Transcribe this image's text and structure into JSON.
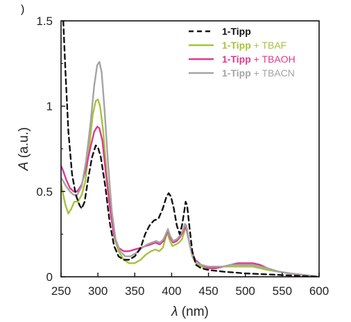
{
  "panel_mark": ")",
  "chart_data": {
    "type": "line",
    "xlabel_italic": "λ",
    "xlabel_unit": " (nm)",
    "ylabel_italic": "A",
    "ylabel_unit": " (a.u.)",
    "xlim": [
      250,
      600
    ],
    "ylim": [
      0,
      1.5
    ],
    "x_ticks": [
      250,
      300,
      350,
      400,
      450,
      500,
      550,
      600
    ],
    "y_ticks": [
      0,
      0.5,
      1,
      1.5
    ],
    "y_tick_labels": [
      "0",
      "0.5",
      "1",
      "1.5"
    ],
    "grid": false,
    "legend_position": "top-right",
    "series": [
      {
        "name_bold": "1-Tipp",
        "name_suffix": "",
        "color": "#111111",
        "dash": "7,5",
        "points": [
          [
            253,
            1.5
          ],
          [
            256,
            1.2
          ],
          [
            260,
            0.85
          ],
          [
            265,
            0.6
          ],
          [
            270,
            0.48
          ],
          [
            275,
            0.42
          ],
          [
            278,
            0.4
          ],
          [
            282,
            0.44
          ],
          [
            287,
            0.58
          ],
          [
            292,
            0.7
          ],
          [
            297,
            0.77
          ],
          [
            300,
            0.76
          ],
          [
            304,
            0.7
          ],
          [
            310,
            0.53
          ],
          [
            316,
            0.32
          ],
          [
            322,
            0.18
          ],
          [
            328,
            0.12
          ],
          [
            335,
            0.1
          ],
          [
            342,
            0.1
          ],
          [
            350,
            0.12
          ],
          [
            358,
            0.17
          ],
          [
            364,
            0.25
          ],
          [
            370,
            0.3
          ],
          [
            376,
            0.33
          ],
          [
            382,
            0.34
          ],
          [
            388,
            0.4
          ],
          [
            393,
            0.47
          ],
          [
            396,
            0.49
          ],
          [
            399,
            0.47
          ],
          [
            403,
            0.4
          ],
          [
            407,
            0.3
          ],
          [
            411,
            0.25
          ],
          [
            414,
            0.3
          ],
          [
            417,
            0.38
          ],
          [
            419,
            0.44
          ],
          [
            421,
            0.42
          ],
          [
            424,
            0.3
          ],
          [
            428,
            0.15
          ],
          [
            433,
            0.07
          ],
          [
            440,
            0.05
          ],
          [
            450,
            0.04
          ],
          [
            470,
            0.03
          ],
          [
            500,
            0.02
          ],
          [
            550,
            0.01
          ],
          [
            600,
            0.0
          ]
        ]
      },
      {
        "name_bold": "1-Tipp",
        "name_suffix": " + TBAF",
        "color": "#a5c33b",
        "dash": "",
        "points": [
          [
            250,
            0.55
          ],
          [
            253,
            0.48
          ],
          [
            256,
            0.42
          ],
          [
            260,
            0.37
          ],
          [
            264,
            0.4
          ],
          [
            268,
            0.44
          ],
          [
            273,
            0.44
          ],
          [
            278,
            0.48
          ],
          [
            283,
            0.56
          ],
          [
            288,
            0.75
          ],
          [
            293,
            0.95
          ],
          [
            297,
            1.03
          ],
          [
            300,
            1.04
          ],
          [
            303,
            1.0
          ],
          [
            307,
            0.86
          ],
          [
            312,
            0.6
          ],
          [
            318,
            0.35
          ],
          [
            323,
            0.22
          ],
          [
            328,
            0.15
          ],
          [
            335,
            0.1
          ],
          [
            342,
            0.08
          ],
          [
            350,
            0.08
          ],
          [
            358,
            0.1
          ],
          [
            365,
            0.13
          ],
          [
            372,
            0.15
          ],
          [
            378,
            0.16
          ],
          [
            383,
            0.15
          ],
          [
            388,
            0.17
          ],
          [
            392,
            0.23
          ],
          [
            394,
            0.26
          ],
          [
            397,
            0.22
          ],
          [
            401,
            0.18
          ],
          [
            406,
            0.19
          ],
          [
            410,
            0.2
          ],
          [
            414,
            0.22
          ],
          [
            417,
            0.26
          ],
          [
            419,
            0.3
          ],
          [
            421,
            0.28
          ],
          [
            424,
            0.2
          ],
          [
            428,
            0.12
          ],
          [
            433,
            0.08
          ],
          [
            440,
            0.06
          ],
          [
            450,
            0.05
          ],
          [
            460,
            0.05
          ],
          [
            470,
            0.06
          ],
          [
            480,
            0.06
          ],
          [
            490,
            0.06
          ],
          [
            500,
            0.06
          ],
          [
            510,
            0.06
          ],
          [
            520,
            0.05
          ],
          [
            530,
            0.04
          ],
          [
            545,
            0.03
          ],
          [
            560,
            0.02
          ],
          [
            580,
            0.01
          ],
          [
            600,
            0.0
          ]
        ]
      },
      {
        "name_bold": "1-Tipp",
        "name_suffix": " + TBAOH",
        "color": "#e0388e",
        "dash": "",
        "points": [
          [
            250,
            0.65
          ],
          [
            253,
            0.62
          ],
          [
            257,
            0.57
          ],
          [
            262,
            0.52
          ],
          [
            267,
            0.5
          ],
          [
            272,
            0.5
          ],
          [
            278,
            0.54
          ],
          [
            284,
            0.64
          ],
          [
            290,
            0.76
          ],
          [
            295,
            0.85
          ],
          [
            299,
            0.88
          ],
          [
            302,
            0.87
          ],
          [
            306,
            0.8
          ],
          [
            311,
            0.6
          ],
          [
            317,
            0.38
          ],
          [
            322,
            0.24
          ],
          [
            328,
            0.17
          ],
          [
            335,
            0.15
          ],
          [
            342,
            0.15
          ],
          [
            350,
            0.16
          ],
          [
            358,
            0.17
          ],
          [
            365,
            0.18
          ],
          [
            372,
            0.19
          ],
          [
            378,
            0.2
          ],
          [
            384,
            0.19
          ],
          [
            389,
            0.21
          ],
          [
            393,
            0.25
          ],
          [
            395,
            0.27
          ],
          [
            398,
            0.23
          ],
          [
            402,
            0.2
          ],
          [
            407,
            0.21
          ],
          [
            411,
            0.23
          ],
          [
            415,
            0.26
          ],
          [
            418,
            0.29
          ],
          [
            420,
            0.28
          ],
          [
            423,
            0.22
          ],
          [
            427,
            0.15
          ],
          [
            432,
            0.1
          ],
          [
            440,
            0.07
          ],
          [
            450,
            0.05
          ],
          [
            460,
            0.05
          ],
          [
            470,
            0.06
          ],
          [
            480,
            0.07
          ],
          [
            490,
            0.08
          ],
          [
            500,
            0.08
          ],
          [
            510,
            0.08
          ],
          [
            520,
            0.07
          ],
          [
            530,
            0.05
          ],
          [
            545,
            0.03
          ],
          [
            560,
            0.02
          ],
          [
            580,
            0.01
          ],
          [
            600,
            0.0
          ]
        ]
      },
      {
        "name_bold": "1-Tipp",
        "name_suffix": " + TBACN",
        "color": "#a4a4a4",
        "dash": "",
        "points": [
          [
            250,
            0.58
          ],
          [
            253,
            0.56
          ],
          [
            257,
            0.53
          ],
          [
            262,
            0.5
          ],
          [
            267,
            0.48
          ],
          [
            272,
            0.48
          ],
          [
            278,
            0.53
          ],
          [
            284,
            0.68
          ],
          [
            290,
            0.9
          ],
          [
            295,
            1.12
          ],
          [
            299,
            1.24
          ],
          [
            302,
            1.26
          ],
          [
            305,
            1.2
          ],
          [
            309,
            0.98
          ],
          [
            314,
            0.65
          ],
          [
            319,
            0.38
          ],
          [
            324,
            0.22
          ],
          [
            330,
            0.15
          ],
          [
            337,
            0.12
          ],
          [
            344,
            0.12
          ],
          [
            352,
            0.14
          ],
          [
            360,
            0.17
          ],
          [
            367,
            0.19
          ],
          [
            373,
            0.2
          ],
          [
            379,
            0.21
          ],
          [
            384,
            0.2
          ],
          [
            389,
            0.22
          ],
          [
            393,
            0.26
          ],
          [
            395,
            0.28
          ],
          [
            398,
            0.24
          ],
          [
            402,
            0.21
          ],
          [
            407,
            0.22
          ],
          [
            411,
            0.24
          ],
          [
            415,
            0.27
          ],
          [
            418,
            0.31
          ],
          [
            420,
            0.3
          ],
          [
            423,
            0.22
          ],
          [
            427,
            0.14
          ],
          [
            432,
            0.09
          ],
          [
            440,
            0.07
          ],
          [
            450,
            0.06
          ],
          [
            460,
            0.06
          ],
          [
            470,
            0.06
          ],
          [
            480,
            0.07
          ],
          [
            490,
            0.07
          ],
          [
            500,
            0.07
          ],
          [
            510,
            0.07
          ],
          [
            520,
            0.06
          ],
          [
            530,
            0.05
          ],
          [
            545,
            0.03
          ],
          [
            560,
            0.02
          ],
          [
            580,
            0.01
          ],
          [
            600,
            0.0
          ]
        ]
      }
    ]
  }
}
